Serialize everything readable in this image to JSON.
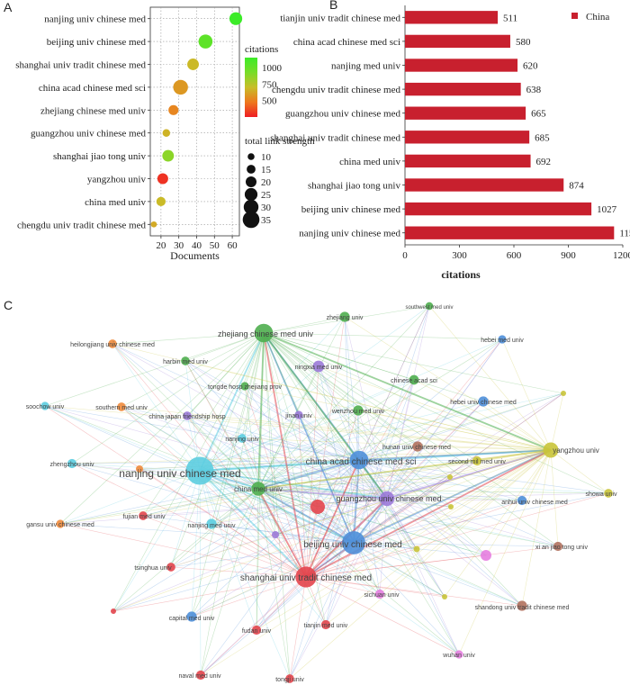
{
  "panels": {
    "a": "A",
    "b": "B",
    "c": "C"
  },
  "chart_data": [
    {
      "type": "scatter",
      "xlabel": "Documents",
      "xlim": [
        14,
        64
      ],
      "xticks": [
        20,
        30,
        40,
        50,
        60
      ],
      "grid": true,
      "points": [
        {
          "label": "nanjing univ chinese med",
          "documents": 62,
          "citations": 1152,
          "link_strength": 25
        },
        {
          "label": "beijing univ chinese med",
          "documents": 45,
          "citations": 1027,
          "link_strength": 28
        },
        {
          "label": "shanghai univ tradit chinese med",
          "documents": 38,
          "citations": 685,
          "link_strength": 22
        },
        {
          "label": "china acad chinese med sci",
          "documents": 31,
          "citations": 580,
          "link_strength": 30
        },
        {
          "label": "zhejiang chinese med univ",
          "documents": 27,
          "citations": 520,
          "link_strength": 18
        },
        {
          "label": "guangzhou univ chinese med",
          "documents": 23,
          "citations": 665,
          "link_strength": 12
        },
        {
          "label": "shanghai jiao tong univ",
          "documents": 24,
          "citations": 874,
          "link_strength": 22
        },
        {
          "label": "yangzhou univ",
          "documents": 21,
          "citations": 300,
          "link_strength": 20
        },
        {
          "label": "china med univ",
          "documents": 20,
          "citations": 692,
          "link_strength": 16
        },
        {
          "label": "chengdu univ tradit chinese med",
          "documents": 16,
          "citations": 638,
          "link_strength": 8
        }
      ],
      "color_legend": {
        "title": "citations",
        "ticks": [
          1000,
          750,
          500
        ],
        "range": [
          250,
          1152
        ]
      },
      "size_legend": {
        "title": "total link strength",
        "values": [
          10,
          15,
          20,
          25,
          30,
          35
        ]
      }
    },
    {
      "type": "bar",
      "orientation": "horizontal",
      "categories": [
        "tianjin univ tradit chinese med",
        "china acad chinese med sci",
        "nanjing med univ",
        "chengdu univ tradit chinese med",
        "guangzhou univ chinese med",
        "shanghai univ tradit chinese med",
        "china med univ",
        "shanghai jiao tong univ",
        "beijing univ chinese med",
        "nanjing univ chinese med"
      ],
      "values": [
        511,
        580,
        620,
        638,
        665,
        685,
        692,
        874,
        1027,
        1152
      ],
      "series": [
        {
          "name": "China",
          "color": "#c8202e"
        }
      ],
      "xlabel": "citations",
      "xlim": [
        0,
        1200
      ],
      "xticks": [
        0,
        300,
        600,
        900,
        1200
      ],
      "legend": "top-right"
    },
    {
      "type": "network",
      "nodes": [
        {
          "label": "nanjing univ chinese med",
          "cluster": "cyan",
          "weight": 5
        },
        {
          "label": "beijing univ chinese med",
          "cluster": "blue",
          "weight": 4
        },
        {
          "label": "shanghai univ tradit chinese med",
          "cluster": "red",
          "weight": 3.5
        },
        {
          "label": "china acad chinese med sci",
          "cluster": "blue",
          "weight": 3
        },
        {
          "label": "zhejiang chinese med univ",
          "cluster": "green",
          "weight": 3
        },
        {
          "label": "guangzhou univ chinese med",
          "cluster": "purple",
          "weight": 2.2
        },
        {
          "label": "yangzhou univ",
          "cluster": "yellow",
          "weight": 2.3
        },
        {
          "label": "china med univ",
          "cluster": "green",
          "weight": 2
        },
        {
          "label": "shandong univ tradit chinese med",
          "cluster": "brown",
          "weight": 1.2
        },
        {
          "label": "hunan univ chinese med",
          "cluster": "brown",
          "weight": 1.2
        },
        {
          "label": "nanjing med univ",
          "cluster": "cyan",
          "weight": 1.2
        },
        {
          "label": "capital med univ",
          "cluster": "blue",
          "weight": 1.2
        },
        {
          "label": "hebei univ chinese med",
          "cluster": "blue",
          "weight": 1.2
        },
        {
          "label": "wenzhou med univ",
          "cluster": "green",
          "weight": 1.2
        },
        {
          "label": "ningxia med univ",
          "cluster": "purple",
          "weight": 1.5
        },
        {
          "label": "chinese acad sci",
          "cluster": "green",
          "weight": 1.1
        },
        {
          "label": "second mil med univ",
          "cluster": "yellow",
          "weight": 1
        },
        {
          "label": "anhui univ chinese med",
          "cluster": "blue",
          "weight": 1
        },
        {
          "label": "xi an jiao tong univ",
          "cluster": "brown",
          "weight": 1
        },
        {
          "label": "sichuan univ",
          "cluster": "pink",
          "weight": 1
        },
        {
          "label": "fudan univ",
          "cluster": "red",
          "weight": 1
        },
        {
          "label": "tianjin med univ",
          "cluster": "red",
          "weight": 1
        },
        {
          "label": "naval med univ",
          "cluster": "red",
          "weight": 1
        },
        {
          "label": "tongji univ",
          "cluster": "red",
          "weight": 0.9
        },
        {
          "label": "wuhan univ",
          "cluster": "pink",
          "weight": 0.8
        },
        {
          "label": "tsinghua univ",
          "cluster": "red",
          "weight": 0.9
        },
        {
          "label": "fujian med univ",
          "cluster": "red",
          "weight": 0.9
        },
        {
          "label": "gansu univ chinese med",
          "cluster": "orange",
          "weight": 0.8
        },
        {
          "label": "zhengzhou univ",
          "cluster": "cyan",
          "weight": 1
        },
        {
          "label": "soochow univ",
          "cluster": "cyan",
          "weight": 0.8
        },
        {
          "label": "southern med univ",
          "cluster": "orange",
          "weight": 0.9
        },
        {
          "label": "heilongjiang univ chinese med",
          "cluster": "orange",
          "weight": 0.9
        },
        {
          "label": "harbin med univ",
          "cluster": "green",
          "weight": 0.9
        },
        {
          "label": "tongde hosp zhejiang prov",
          "cluster": "green",
          "weight": 0.8
        },
        {
          "label": "china japan friendship hosp",
          "cluster": "purple",
          "weight": 0.9
        },
        {
          "label": "nanjing univ",
          "cluster": "cyan",
          "weight": 0.9
        },
        {
          "label": "jinan univ",
          "cluster": "purple",
          "weight": 0.8
        },
        {
          "label": "zhejiang univ",
          "cluster": "green",
          "weight": 1.2
        },
        {
          "label": "southwest med univ",
          "cluster": "green",
          "weight": 0.7
        },
        {
          "label": "hebei med univ",
          "cluster": "blue",
          "weight": 0.8
        },
        {
          "label": "showa univ",
          "cluster": "yellow",
          "weight": 0.9
        }
      ]
    }
  ]
}
